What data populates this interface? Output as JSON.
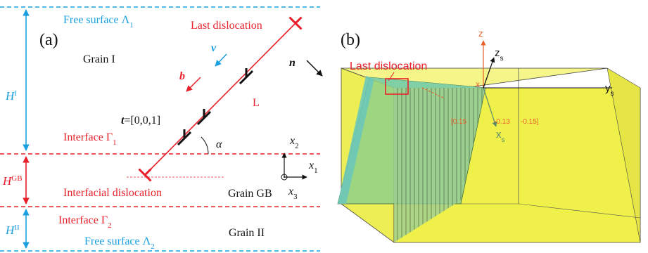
{
  "panel_a": {
    "label": "(a)",
    "free_surface_1": "Free surface Λ",
    "free_surface_1_sub": "1",
    "free_surface_2": "Free surface Λ",
    "free_surface_2_sub": "2",
    "grain_1": "Grain I",
    "grain_gb": "Grain GB",
    "grain_2": "Grain II",
    "interface_1": "Interface Γ",
    "interface_1_sub": "1",
    "interface_2": "Interface Γ",
    "interface_2_sub": "2",
    "h1": "H",
    "h1_sup": "I",
    "hgb": "H",
    "hgb_sup": "GB",
    "h2": "H",
    "h2_sup": "II",
    "last_dislocation": "Last dislocation",
    "interfacial_dislocation": "Interfacial  dislocation",
    "vec_v": "v",
    "vec_b": "b",
    "vec_n": "n",
    "line_l": "L",
    "vec_t": "t",
    "vec_t_value": "=[0,0,1]",
    "angle": "α",
    "axis_x1": "x",
    "axis_x1_sub": "1",
    "axis_x2": "x",
    "axis_x2_sub": "2",
    "axis_x3": "x",
    "axis_x3_sub": "3"
  },
  "panel_b": {
    "label": "(b)",
    "last_dislocation": "Last dislocation",
    "axis_z": "z",
    "axis_zs": "z",
    "axis_zs_sub": "s",
    "axis_xs": "x",
    "axis_xs_sub": "s",
    "axis_ys": "y",
    "axis_ys_sub": "s",
    "coord_a": "[0.15",
    "coord_b": "-0.13",
    "coord_c": "-0.15]"
  },
  "colors": {
    "red": "#e8202a",
    "blue": "#1aa0e0",
    "yellow": "#f2f24a",
    "green": "#8fd08a",
    "teal": "#6cc8b8"
  }
}
